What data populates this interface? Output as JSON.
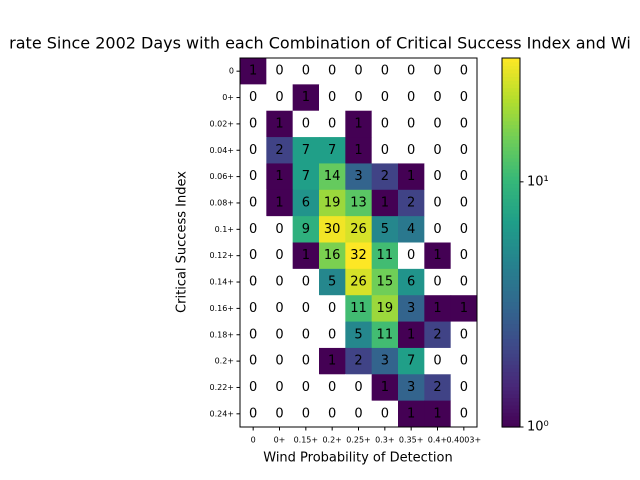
{
  "chart_data": {
    "type": "heatmap",
    "title": "rate Since 2002 Days with each Combination of Critical Success Index and Wi",
    "x_label": "Wind Probability of Detection",
    "y_label": "Critical Success Index",
    "x_categories": [
      "0",
      "0+",
      "0.15+",
      "0.2+",
      "0.25+",
      "0.3+",
      "0.35+",
      "0.4+",
      "0.4003+"
    ],
    "y_categories": [
      "0",
      "0+",
      "0.02+",
      "0.04+",
      "0.06+",
      "0.08+",
      "0.1+",
      "0.12+",
      "0.14+",
      "0.16+",
      "0.18+",
      "0.2+",
      "0.22+",
      "0.24+"
    ],
    "values": [
      [
        1,
        0,
        0,
        0,
        0,
        0,
        0,
        0,
        0
      ],
      [
        0,
        0,
        1,
        0,
        0,
        0,
        0,
        0,
        0
      ],
      [
        0,
        1,
        0,
        0,
        1,
        0,
        0,
        0,
        0
      ],
      [
        0,
        2,
        7,
        7,
        1,
        0,
        0,
        0,
        0
      ],
      [
        0,
        1,
        7,
        14,
        3,
        2,
        1,
        0,
        0
      ],
      [
        0,
        1,
        6,
        19,
        13,
        1,
        2,
        0,
        0
      ],
      [
        0,
        0,
        9,
        30,
        26,
        5,
        4,
        0,
        0
      ],
      [
        0,
        0,
        1,
        16,
        32,
        11,
        0,
        1,
        0
      ],
      [
        0,
        0,
        0,
        5,
        26,
        15,
        6,
        0,
        0
      ],
      [
        0,
        0,
        0,
        0,
        11,
        19,
        3,
        1,
        1
      ],
      [
        0,
        0,
        0,
        0,
        5,
        11,
        1,
        2,
        0
      ],
      [
        0,
        0,
        0,
        1,
        2,
        3,
        7,
        0,
        0
      ],
      [
        0,
        0,
        0,
        0,
        0,
        1,
        3,
        2,
        0
      ],
      [
        0,
        0,
        0,
        0,
        0,
        0,
        1,
        1,
        0
      ]
    ],
    "colormap": "viridis",
    "log_scale": true,
    "clim": [
      1,
      32
    ],
    "cticks": [
      {
        "value": 1,
        "label": "10⁰"
      },
      {
        "value": 10,
        "label": "10¹"
      }
    ]
  }
}
